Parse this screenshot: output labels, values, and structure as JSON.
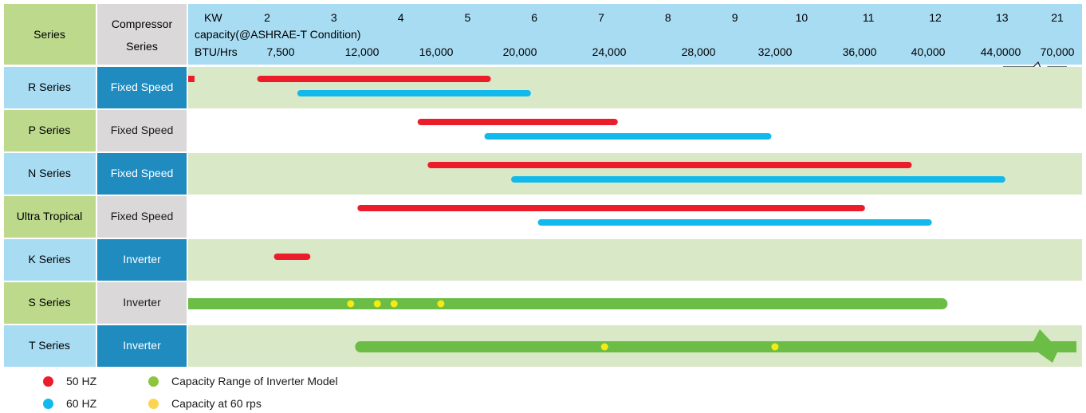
{
  "header": {
    "series_label": "Series",
    "compressor_label_line1": "Compressor",
    "compressor_label_line2": "Series",
    "kw_label": "KW",
    "capacity_label": "capacity(@ASHRAE-T Condition)",
    "btu_label": "BTU/Hrs"
  },
  "colors": {
    "header_blue": "#a8dcf3",
    "series_green": "#bcd98c",
    "series_blue": "#a8dcf3",
    "compressor_dark": "#1f8bbf",
    "compressor_gray": "#dbd8d9",
    "row_green": "#d9e8c6",
    "row_white": "#ffffff",
    "red": "#ec1d2b",
    "cyan": "#12b9ec",
    "green": "#6bbd45",
    "yellow": "#f5ea14"
  },
  "chart_data": {
    "type": "range",
    "kw_ticks": [
      "2",
      "3",
      "4",
      "5",
      "6",
      "7",
      "8",
      "9",
      "10",
      "11",
      "12",
      "13",
      "21"
    ],
    "btu_ticks": [
      "7,500",
      "12,000",
      "16,000",
      "20,000",
      "24,000",
      "28,000",
      "32,000",
      "36,000",
      "40,000",
      "44,0000",
      "70,000"
    ],
    "rows": [
      {
        "series": "R Series",
        "compressor": "Fixed Speed",
        "bars": [
          {
            "type": "50 HZ",
            "from_kw": 1.9,
            "to_kw": 5.3
          },
          {
            "type": "60 HZ",
            "from_kw": 2.5,
            "to_kw": 5.9
          }
        ]
      },
      {
        "series": "P Series",
        "compressor": "Fixed Speed",
        "bars": [
          {
            "type": "50 HZ",
            "from_kw": 4.3,
            "to_kw": 7.2
          },
          {
            "type": "60 HZ",
            "from_kw": 5.3,
            "to_kw": 9.5
          }
        ]
      },
      {
        "series": "N Series",
        "compressor": "Fixed Speed",
        "bars": [
          {
            "type": "50 HZ",
            "from_kw": 4.45,
            "to_kw": 11.6
          },
          {
            "type": "60 HZ",
            "from_kw": 5.7,
            "to_kw": 13.0
          }
        ]
      },
      {
        "series": "Ultra Tropical",
        "compressor": "Fixed Speed",
        "bars": [
          {
            "type": "50 HZ",
            "from_kw": 3.4,
            "to_kw": 10.9
          },
          {
            "type": "60 HZ",
            "from_kw": 6.1,
            "to_kw": 11.9
          }
        ]
      },
      {
        "series": "K Series",
        "compressor": "Inverter",
        "bars": [
          {
            "type": "50 HZ",
            "from_kw": 2.15,
            "to_kw": 2.6
          }
        ]
      },
      {
        "series": "S Series",
        "compressor": "Inverter",
        "bars": [
          {
            "type": "Capacity Range of Inverter Model",
            "from_kw": 0.9,
            "to_kw": 12.1
          }
        ],
        "points_60rps_kw": [
          3.25,
          3.65,
          3.9,
          4.6
        ]
      },
      {
        "series": "T Series",
        "compressor": "Inverter",
        "bars": [
          {
            "type": "Capacity Range of Inverter Model",
            "from_kw": 3.4,
            "to_kw": 21,
            "axis_break": true
          }
        ],
        "points_60rps_kw": [
          7.05,
          9.6
        ]
      }
    ]
  },
  "legend": {
    "red_label": "50 HZ",
    "cyan_label": "60 HZ",
    "green_label": "Capacity Range of Inverter Model",
    "yellow_label": "Capacity at 60 rps"
  }
}
